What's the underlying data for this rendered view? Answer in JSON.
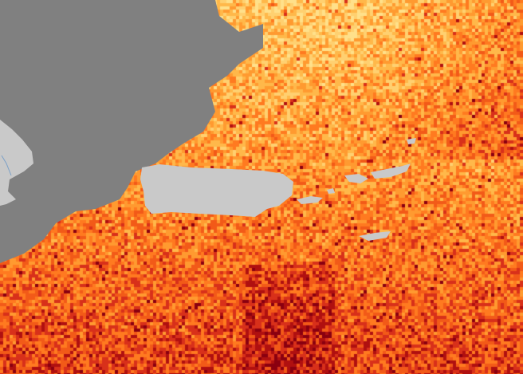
{
  "map": {
    "colors": {
      "no_data": "#808080",
      "land": "#c9c9c9",
      "river": "#7aa0c8",
      "scale": [
        "#ffe08a",
        "#ffd070",
        "#ffb84a",
        "#ff9a30",
        "#ff7a20",
        "#f25a18",
        "#d8301a",
        "#b01010",
        "#8a0010"
      ]
    }
  }
}
